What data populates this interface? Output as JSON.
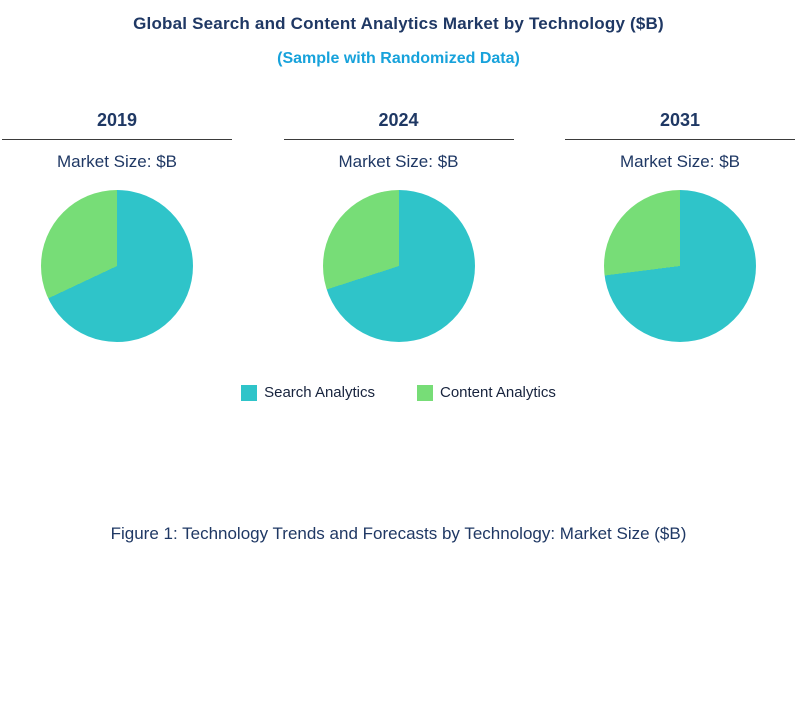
{
  "title": "Global Search and Content Analytics Market by Technology ($B)",
  "subtitle": "(Sample with Randomized Data)",
  "caption": "Figure 1: Technology Trends and Forecasts by Technology: Market Size ($B)",
  "colors": {
    "search_analytics": "#2FC4C9",
    "content_analytics": "#77DD77",
    "title_text": "#1F3864",
    "subtitle_text": "#17A2DB"
  },
  "legend": [
    {
      "label": "Search Analytics",
      "color": "#2FC4C9"
    },
    {
      "label": "Content  Analytics",
      "color": "#77DD77"
    }
  ],
  "chart_data": {
    "type": "pie",
    "title": "Global Search and Content Analytics Market by Technology ($B)",
    "subtitle": "(Sample with Randomized Data)",
    "legend_position": "bottom",
    "units": "$B",
    "charts": [
      {
        "year": "2019",
        "label": "Market Size: $B",
        "slices": [
          {
            "name": "Search Analytics",
            "pct": 68
          },
          {
            "name": "Content Analytics",
            "pct": 32
          }
        ]
      },
      {
        "year": "2024",
        "label": "Market Size: $B",
        "slices": [
          {
            "name": "Search Analytics",
            "pct": 70
          },
          {
            "name": "Content Analytics",
            "pct": 30
          }
        ]
      },
      {
        "year": "2031",
        "label": "Market Size: $B",
        "slices": [
          {
            "name": "Search Analytics",
            "pct": 73
          },
          {
            "name": "Content Analytics",
            "pct": 27
          }
        ]
      }
    ]
  }
}
